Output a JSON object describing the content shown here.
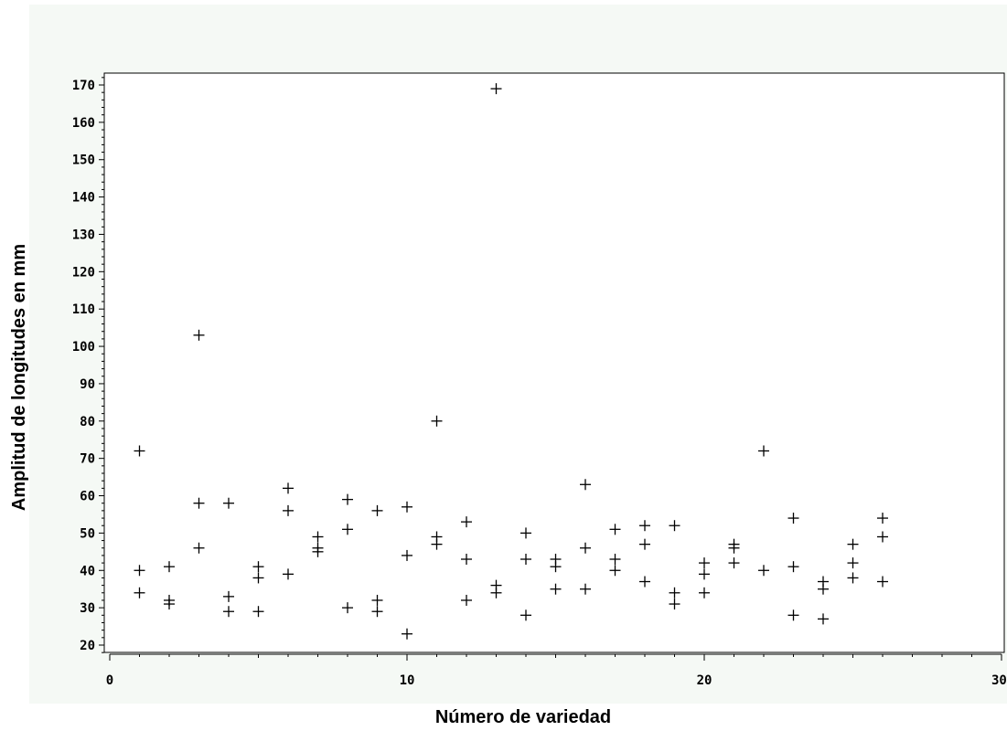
{
  "chart_data": {
    "type": "scatter",
    "marker": "plus",
    "xlabel": "Número de variedad",
    "ylabel": "Amplitud de longitudes en mm",
    "xlim": [
      0,
      30
    ],
    "ylim": [
      18,
      172
    ],
    "xticks": [
      0,
      10,
      20,
      30
    ],
    "yticks": [
      20,
      30,
      40,
      50,
      60,
      70,
      80,
      90,
      100,
      110,
      120,
      130,
      140,
      150,
      160,
      170
    ],
    "grid": false,
    "colors": {
      "background": "#f5f9f5",
      "plot_area": "#ffffff",
      "marker": "#000000"
    },
    "points": [
      {
        "x": 1,
        "y": 72
      },
      {
        "x": 1,
        "y": 40
      },
      {
        "x": 1,
        "y": 34
      },
      {
        "x": 2,
        "y": 41
      },
      {
        "x": 2,
        "y": 32
      },
      {
        "x": 2,
        "y": 31
      },
      {
        "x": 3,
        "y": 103
      },
      {
        "x": 3,
        "y": 58
      },
      {
        "x": 3,
        "y": 46
      },
      {
        "x": 4,
        "y": 58
      },
      {
        "x": 4,
        "y": 33
      },
      {
        "x": 4,
        "y": 29
      },
      {
        "x": 5,
        "y": 41
      },
      {
        "x": 5,
        "y": 38
      },
      {
        "x": 5,
        "y": 29
      },
      {
        "x": 6,
        "y": 62
      },
      {
        "x": 6,
        "y": 56
      },
      {
        "x": 6,
        "y": 39
      },
      {
        "x": 7,
        "y": 49
      },
      {
        "x": 7,
        "y": 46
      },
      {
        "x": 7,
        "y": 45
      },
      {
        "x": 8,
        "y": 59
      },
      {
        "x": 8,
        "y": 51
      },
      {
        "x": 8,
        "y": 30
      },
      {
        "x": 9,
        "y": 56
      },
      {
        "x": 9,
        "y": 32
      },
      {
        "x": 9,
        "y": 29
      },
      {
        "x": 10,
        "y": 57
      },
      {
        "x": 10,
        "y": 44
      },
      {
        "x": 10,
        "y": 23
      },
      {
        "x": 11,
        "y": 80
      },
      {
        "x": 11,
        "y": 49
      },
      {
        "x": 11,
        "y": 47
      },
      {
        "x": 12,
        "y": 53
      },
      {
        "x": 12,
        "y": 43
      },
      {
        "x": 12,
        "y": 32
      },
      {
        "x": 13,
        "y": 169
      },
      {
        "x": 13,
        "y": 36
      },
      {
        "x": 13,
        "y": 34
      },
      {
        "x": 14,
        "y": 50
      },
      {
        "x": 14,
        "y": 43
      },
      {
        "x": 14,
        "y": 28
      },
      {
        "x": 15,
        "y": 43
      },
      {
        "x": 15,
        "y": 41
      },
      {
        "x": 15,
        "y": 35
      },
      {
        "x": 16,
        "y": 63
      },
      {
        "x": 16,
        "y": 46
      },
      {
        "x": 16,
        "y": 35
      },
      {
        "x": 17,
        "y": 51
      },
      {
        "x": 17,
        "y": 43
      },
      {
        "x": 17,
        "y": 40
      },
      {
        "x": 18,
        "y": 52
      },
      {
        "x": 18,
        "y": 47
      },
      {
        "x": 18,
        "y": 37
      },
      {
        "x": 19,
        "y": 52
      },
      {
        "x": 19,
        "y": 34
      },
      {
        "x": 19,
        "y": 31
      },
      {
        "x": 20,
        "y": 42
      },
      {
        "x": 20,
        "y": 39
      },
      {
        "x": 20,
        "y": 34
      },
      {
        "x": 21,
        "y": 47
      },
      {
        "x": 21,
        "y": 46
      },
      {
        "x": 21,
        "y": 42
      },
      {
        "x": 22,
        "y": 72
      },
      {
        "x": 22,
        "y": 40
      },
      {
        "x": 23,
        "y": 54
      },
      {
        "x": 23,
        "y": 41
      },
      {
        "x": 23,
        "y": 28
      },
      {
        "x": 24,
        "y": 37
      },
      {
        "x": 24,
        "y": 35
      },
      {
        "x": 24,
        "y": 27
      },
      {
        "x": 25,
        "y": 47
      },
      {
        "x": 25,
        "y": 42
      },
      {
        "x": 25,
        "y": 38
      },
      {
        "x": 26,
        "y": 54
      },
      {
        "x": 26,
        "y": 49
      },
      {
        "x": 26,
        "y": 37
      }
    ]
  }
}
